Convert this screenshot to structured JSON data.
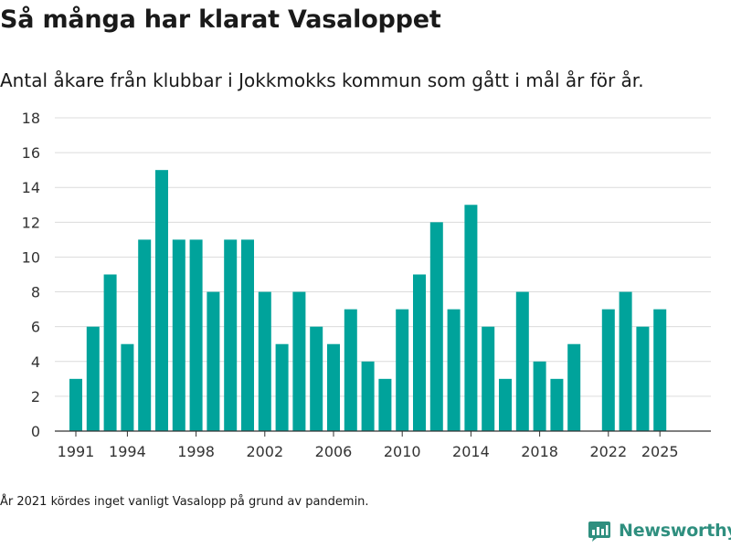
{
  "title": "Så många har klarat Vasaloppet",
  "subtitle": "Antal åkare från klubbar i Jokkmokks kommun som gått i mål år för år.",
  "footnote": "År 2021 kördes inget vanligt Vasalopp på grund av pandemin.",
  "brand": {
    "name": "Newsworthy",
    "icon": "newsworthy-logo-icon",
    "color": "#2f8f7f"
  },
  "colors": {
    "bar": "#00a39b",
    "grid": "#dcdcdc",
    "axis": "#333333"
  },
  "chart_data": {
    "type": "bar",
    "title": "Så många har klarat Vasaloppet",
    "xlabel": "",
    "ylabel": "",
    "x": [
      1991,
      1992,
      1993,
      1994,
      1995,
      1996,
      1997,
      1998,
      1999,
      2000,
      2001,
      2002,
      2003,
      2004,
      2005,
      2006,
      2007,
      2008,
      2009,
      2010,
      2011,
      2012,
      2013,
      2014,
      2015,
      2016,
      2017,
      2018,
      2019,
      2020,
      2021,
      2022,
      2023,
      2024,
      2025
    ],
    "values": [
      3,
      6,
      9,
      5,
      11,
      15,
      11,
      11,
      8,
      11,
      11,
      8,
      5,
      8,
      6,
      5,
      7,
      4,
      3,
      7,
      9,
      12,
      7,
      13,
      6,
      3,
      8,
      4,
      3,
      5,
      null,
      7,
      8,
      6,
      7
    ],
    "ylim": [
      0,
      18
    ],
    "yticks": [
      0,
      2,
      4,
      6,
      8,
      10,
      12,
      14,
      16,
      18
    ],
    "xticks": [
      "1991",
      "1994",
      "1998",
      "2002",
      "2006",
      "2010",
      "2014",
      "2018",
      "2022",
      "2025"
    ],
    "grid": true,
    "legend": "none"
  }
}
